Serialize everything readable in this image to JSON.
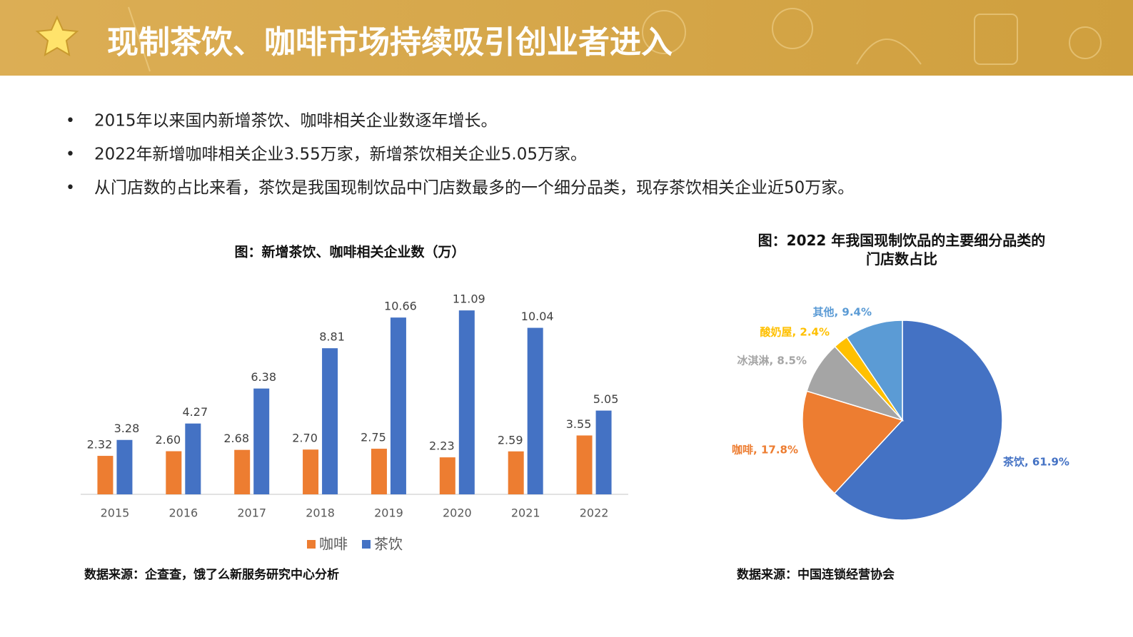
{
  "header": {
    "title": "现制茶饮、咖啡市场持续吸引创业者进入"
  },
  "bullets": [
    "2015年以来国内新增茶饮、咖啡相关企业数逐年增长。",
    "2022年新增咖啡相关企业3.55万家，新增茶饮相关企业5.05万家。",
    "从门店数的占比来看，茶饮是我国现制饮品中门店数最多的一个细分品类，现存茶饮相关企业近50万家。"
  ],
  "chart_data": [
    {
      "type": "bar",
      "title": "图：新增茶饮、咖啡相关企业数（万）",
      "categories": [
        "2015",
        "2016",
        "2017",
        "2018",
        "2019",
        "2020",
        "2021",
        "2022"
      ],
      "series": [
        {
          "name": "咖啡",
          "color": "#ed7d31",
          "values": [
            2.32,
            2.6,
            2.68,
            2.7,
            2.75,
            2.23,
            2.59,
            3.55
          ],
          "value_labels": [
            "2.32",
            "2.60",
            "2.68",
            "2.70",
            "2.75",
            "2.23",
            "2.59",
            "3.55"
          ]
        },
        {
          "name": "茶饮",
          "color": "#4472c4",
          "values": [
            3.28,
            4.27,
            6.38,
            8.81,
            10.66,
            11.09,
            10.04,
            5.05
          ]
        }
      ],
      "ylim": [
        0,
        12
      ],
      "legend": "bottom",
      "source": "数据来源：企查查，饿了么新服务研究中心分析"
    },
    {
      "type": "pie",
      "title": "图：2022 年我国现制饮品的主要细分品类的门店数占比",
      "values": [
        61.9,
        17.8,
        8.5,
        2.4,
        9.4
      ],
      "value_labels": [
        "茶饮, 61.9%",
        "咖啡, 17.8%",
        "冰淇淋, 8.5%",
        "酸奶屋, 2.4%",
        "其他, 9.4%"
      ],
      "colors": [
        "#4472c4",
        "#ed7d31",
        "#a5a5a5",
        "#ffc000",
        "#5b9bd5"
      ],
      "source": "数据来源：中国连锁经营协会"
    }
  ]
}
